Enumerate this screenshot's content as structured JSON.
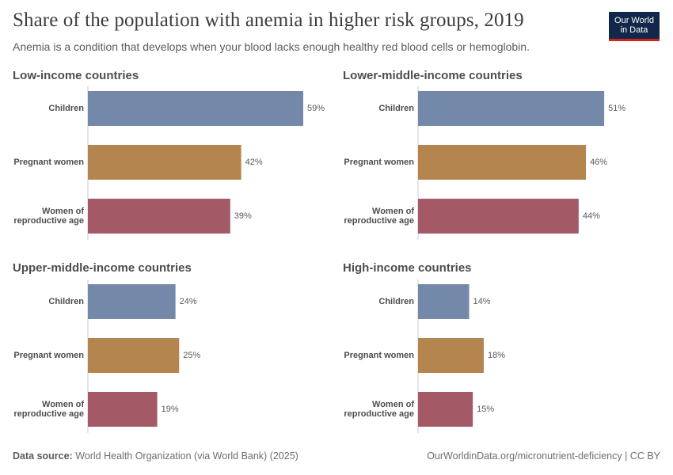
{
  "header": {
    "title": "Share of the population with anemia in higher risk groups, 2019",
    "subtitle": "Anemia is a condition that develops when your blood lacks enough healthy red blood cells or hemoglobin."
  },
  "logo": {
    "line1": "Our World",
    "line2": "in Data"
  },
  "footer": {
    "source_label": "Data source:",
    "source_text": "World Health Organization (via World Bank) (2025)",
    "url": "OurWorldinData.org/micronutrient-deficiency | CC BY"
  },
  "colors": {
    "Children": "#7489a9",
    "Pregnant women": "#b5854f",
    "Women of reproductive age": "#a45a66",
    "axis": "#cccccc"
  },
  "chart_data": {
    "type": "bar",
    "orientation": "horizontal",
    "unit": "%",
    "xlim": [
      0,
      100
    ],
    "categories": [
      "Children",
      "Pregnant women",
      "Women of reproductive age"
    ],
    "category_display": [
      [
        "Children"
      ],
      [
        "Pregnant women"
      ],
      [
        "Women of",
        "reproductive age"
      ]
    ],
    "panels": [
      {
        "title": "Low-income countries",
        "values": [
          59,
          42,
          39
        ]
      },
      {
        "title": "Lower-middle-income countries",
        "values": [
          51,
          46,
          44
        ]
      },
      {
        "title": "Upper-middle-income countries",
        "values": [
          24,
          25,
          19
        ]
      },
      {
        "title": "High-income countries",
        "values": [
          14,
          18,
          15
        ]
      }
    ]
  }
}
